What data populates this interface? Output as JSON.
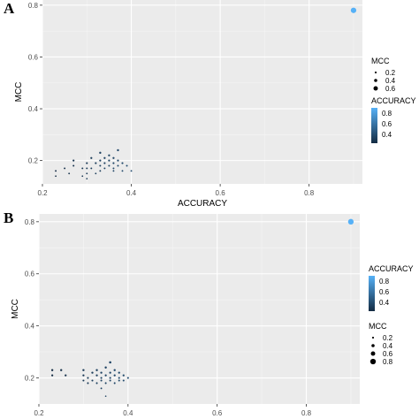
{
  "chart_data": [
    {
      "panel_label": "A",
      "type": "scatter",
      "xlabel": "ACCURACY",
      "ylabel": "MCC",
      "xlim": [
        0.2,
        0.92
      ],
      "ylim": [
        0.11,
        0.82
      ],
      "xticks": [
        "0.2",
        "0.4",
        "0.6",
        "0.8"
      ],
      "yticks": [
        "0.2",
        "0.4",
        "0.6",
        "0.8"
      ],
      "grid": true,
      "legend_order": [
        "size",
        "color"
      ],
      "legend_size": {
        "title": "MCC",
        "entries": [
          "0.2",
          "0.4",
          "0.6"
        ]
      },
      "legend_color": {
        "title": "ACCURACY",
        "entries": [
          "0.8",
          "0.6",
          "0.4"
        ],
        "low_color": "#132B43",
        "high_color": "#56B1F7"
      },
      "points": [
        {
          "x": 0.23,
          "y": 0.14
        },
        {
          "x": 0.23,
          "y": 0.16
        },
        {
          "x": 0.25,
          "y": 0.17
        },
        {
          "x": 0.26,
          "y": 0.15
        },
        {
          "x": 0.27,
          "y": 0.18
        },
        {
          "x": 0.27,
          "y": 0.2
        },
        {
          "x": 0.29,
          "y": 0.17
        },
        {
          "x": 0.3,
          "y": 0.17
        },
        {
          "x": 0.3,
          "y": 0.15
        },
        {
          "x": 0.3,
          "y": 0.19
        },
        {
          "x": 0.31,
          "y": 0.21
        },
        {
          "x": 0.31,
          "y": 0.17
        },
        {
          "x": 0.32,
          "y": 0.19
        },
        {
          "x": 0.32,
          "y": 0.15
        },
        {
          "x": 0.33,
          "y": 0.2
        },
        {
          "x": 0.33,
          "y": 0.23
        },
        {
          "x": 0.33,
          "y": 0.18
        },
        {
          "x": 0.33,
          "y": 0.16
        },
        {
          "x": 0.34,
          "y": 0.19
        },
        {
          "x": 0.34,
          "y": 0.21
        },
        {
          "x": 0.34,
          "y": 0.17
        },
        {
          "x": 0.35,
          "y": 0.2
        },
        {
          "x": 0.35,
          "y": 0.18
        },
        {
          "x": 0.35,
          "y": 0.22
        },
        {
          "x": 0.36,
          "y": 0.16
        },
        {
          "x": 0.36,
          "y": 0.19
        },
        {
          "x": 0.36,
          "y": 0.21
        },
        {
          "x": 0.36,
          "y": 0.17
        },
        {
          "x": 0.37,
          "y": 0.18
        },
        {
          "x": 0.37,
          "y": 0.24
        },
        {
          "x": 0.37,
          "y": 0.2
        },
        {
          "x": 0.38,
          "y": 0.19
        },
        {
          "x": 0.38,
          "y": 0.16
        },
        {
          "x": 0.39,
          "y": 0.18
        },
        {
          "x": 0.4,
          "y": 0.16
        },
        {
          "x": 0.29,
          "y": 0.14
        },
        {
          "x": 0.3,
          "y": 0.13
        },
        {
          "x": 0.9,
          "y": 0.78
        }
      ]
    },
    {
      "panel_label": "B",
      "type": "scatter",
      "xlabel": "ACCURACY",
      "ylabel": "MCC",
      "xlim": [
        0.2,
        0.92
      ],
      "ylim": [
        0.1,
        0.83
      ],
      "xticks": [
        "0.2",
        "0.4",
        "0.6",
        "0.8"
      ],
      "yticks": [
        "0.2",
        "0.4",
        "0.6",
        "0.8"
      ],
      "grid": true,
      "legend_order": [
        "color",
        "size"
      ],
      "legend_size": {
        "title": "MCC",
        "entries": [
          "0.2",
          "0.4",
          "0.6",
          "0.8"
        ]
      },
      "legend_color": {
        "title": "ACCURACY",
        "entries": [
          "0.8",
          "0.6",
          "0.4"
        ],
        "low_color": "#132B43",
        "high_color": "#56B1F7"
      },
      "points": [
        {
          "x": 0.23,
          "y": 0.23
        },
        {
          "x": 0.23,
          "y": 0.21
        },
        {
          "x": 0.25,
          "y": 0.23
        },
        {
          "x": 0.26,
          "y": 0.21
        },
        {
          "x": 0.3,
          "y": 0.23
        },
        {
          "x": 0.3,
          "y": 0.21
        },
        {
          "x": 0.3,
          "y": 0.19
        },
        {
          "x": 0.31,
          "y": 0.2
        },
        {
          "x": 0.31,
          "y": 0.18
        },
        {
          "x": 0.32,
          "y": 0.22
        },
        {
          "x": 0.32,
          "y": 0.19
        },
        {
          "x": 0.33,
          "y": 0.21
        },
        {
          "x": 0.33,
          "y": 0.18
        },
        {
          "x": 0.33,
          "y": 0.23
        },
        {
          "x": 0.34,
          "y": 0.2
        },
        {
          "x": 0.34,
          "y": 0.19
        },
        {
          "x": 0.34,
          "y": 0.22
        },
        {
          "x": 0.35,
          "y": 0.21
        },
        {
          "x": 0.35,
          "y": 0.18
        },
        {
          "x": 0.35,
          "y": 0.24
        },
        {
          "x": 0.36,
          "y": 0.2
        },
        {
          "x": 0.36,
          "y": 0.22
        },
        {
          "x": 0.36,
          "y": 0.19
        },
        {
          "x": 0.36,
          "y": 0.26
        },
        {
          "x": 0.37,
          "y": 0.21
        },
        {
          "x": 0.37,
          "y": 0.18
        },
        {
          "x": 0.37,
          "y": 0.23
        },
        {
          "x": 0.38,
          "y": 0.2
        },
        {
          "x": 0.38,
          "y": 0.19
        },
        {
          "x": 0.38,
          "y": 0.22
        },
        {
          "x": 0.39,
          "y": 0.21
        },
        {
          "x": 0.39,
          "y": 0.19
        },
        {
          "x": 0.4,
          "y": 0.2
        },
        {
          "x": 0.35,
          "y": 0.13
        },
        {
          "x": 0.34,
          "y": 0.16
        },
        {
          "x": 0.9,
          "y": 0.8
        }
      ]
    }
  ]
}
